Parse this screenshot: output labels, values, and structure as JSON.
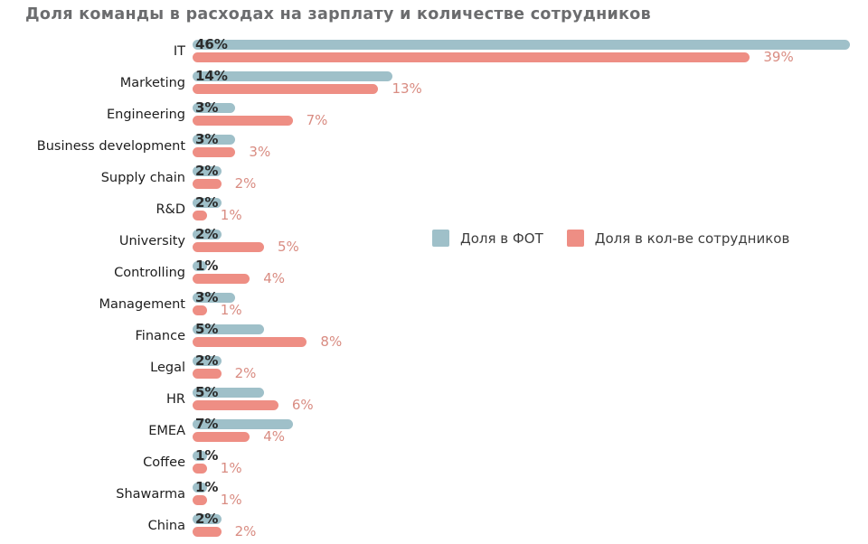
{
  "title": "Доля команды в расходах на зарплату и количестве сотрудников",
  "colors": {
    "fot_bar": "#9fc0c9",
    "count_bar": "#ee8e84",
    "title_text": "#6b6c6e",
    "category_text": "#1e1e1e",
    "fot_value_text": "#2b2b2b",
    "count_value_text": "#d98c82",
    "legend_text": "#3d3d3d",
    "background": "#ffffff"
  },
  "legend": {
    "items": [
      {
        "label": "Доля в ФОТ",
        "color": "#9fc0c9"
      },
      {
        "label": "Доля в кол-ве сотрудников",
        "color": "#ee8e84"
      }
    ],
    "position": "middle-right"
  },
  "chart_data": {
    "type": "bar",
    "orientation": "horizontal",
    "title": "Доля команды в расходах на зарплату и количестве сотрудников",
    "xlabel": "",
    "ylabel": "",
    "xlim": [
      0,
      46
    ],
    "grid": false,
    "value_suffix": "%",
    "legend_position": "middle-right",
    "categories": [
      "IT",
      "Marketing",
      "Engineering",
      "Business development",
      "Supply chain",
      "R&D",
      "University",
      "Controlling",
      "Management",
      "Finance",
      "Legal",
      "HR",
      "EMEA",
      "Coffee",
      "Shawarma",
      "China"
    ],
    "series": [
      {
        "name": "Доля в ФОТ",
        "color": "#9fc0c9",
        "values": [
          46,
          14,
          3,
          3,
          2,
          2,
          2,
          1,
          3,
          5,
          2,
          5,
          7,
          1,
          1,
          2
        ],
        "labels": [
          "46%",
          "14%",
          "3%",
          "3%",
          "2%",
          "2%",
          "2%",
          "1%",
          "3%",
          "5%",
          "2%",
          "5%",
          "7%",
          "1%",
          "1%",
          "2%"
        ]
      },
      {
        "name": "Доля в кол-ве сотрудников",
        "color": "#ee8e84",
        "values": [
          39,
          13,
          7,
          3,
          2,
          1,
          5,
          4,
          1,
          8,
          2,
          6,
          4,
          1,
          1,
          2
        ],
        "labels": [
          "39%",
          "13%",
          "7%",
          "3%",
          "2%",
          "1%",
          "5%",
          "4%",
          "1%",
          "8%",
          "2%",
          "6%",
          "4%",
          "1%",
          "1%",
          "2%"
        ]
      }
    ]
  }
}
